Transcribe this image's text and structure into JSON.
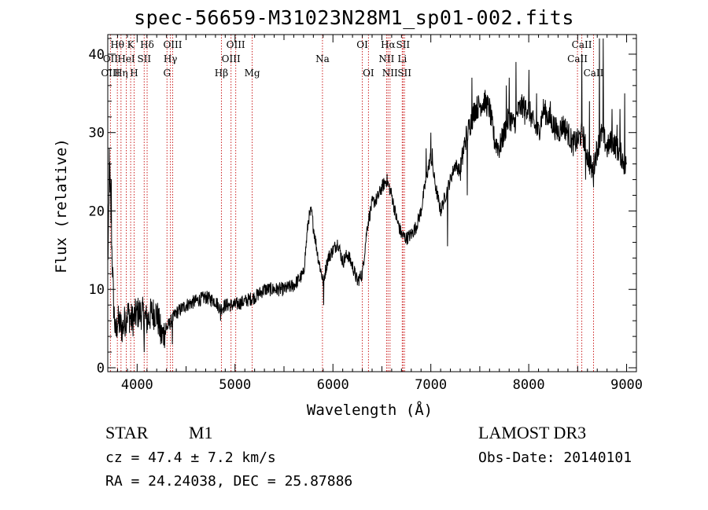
{
  "chart_data": {
    "type": "line",
    "title": "spec-56659-M31023N28M1_sp01-002.fits",
    "xlabel": "Wavelength (Å)",
    "ylabel": "Flux (relative)",
    "xlim": [
      3700,
      9100
    ],
    "ylim": [
      -0.5,
      42.5
    ],
    "xticks": [
      4000,
      5000,
      6000,
      7000,
      8000,
      9000
    ],
    "yticks": [
      0,
      10,
      20,
      30,
      40
    ],
    "spectrum_anchors": [
      [
        3700,
        13
      ],
      [
        3720,
        25
      ],
      [
        3740,
        16
      ],
      [
        3760,
        8
      ],
      [
        3780,
        4
      ],
      [
        3800,
        6
      ],
      [
        3850,
        5
      ],
      [
        3900,
        7
      ],
      [
        3950,
        6
      ],
      [
        4000,
        7
      ],
      [
        4050,
        7
      ],
      [
        4100,
        6
      ],
      [
        4150,
        7
      ],
      [
        4200,
        7
      ],
      [
        4250,
        4
      ],
      [
        4300,
        5
      ],
      [
        4350,
        6
      ],
      [
        4400,
        7
      ],
      [
        4500,
        8
      ],
      [
        4600,
        8.5
      ],
      [
        4700,
        9
      ],
      [
        4800,
        8.5
      ],
      [
        4850,
        7.5
      ],
      [
        4900,
        8
      ],
      [
        5000,
        8
      ],
      [
        5100,
        8.5
      ],
      [
        5200,
        9
      ],
      [
        5300,
        10
      ],
      [
        5400,
        10
      ],
      [
        5500,
        10
      ],
      [
        5600,
        10.5
      ],
      [
        5700,
        12
      ],
      [
        5750,
        19
      ],
      [
        5780,
        20
      ],
      [
        5800,
        18
      ],
      [
        5850,
        14
      ],
      [
        5900,
        11
      ],
      [
        5950,
        14
      ],
      [
        6000,
        15
      ],
      [
        6050,
        16
      ],
      [
        6100,
        13.5
      ],
      [
        6150,
        14.5
      ],
      [
        6200,
        13
      ],
      [
        6250,
        11
      ],
      [
        6300,
        12
      ],
      [
        6350,
        18
      ],
      [
        6400,
        21
      ],
      [
        6450,
        21.5
      ],
      [
        6500,
        23
      ],
      [
        6550,
        24
      ],
      [
        6600,
        22
      ],
      [
        6650,
        19
      ],
      [
        6700,
        17
      ],
      [
        6750,
        16.5
      ],
      [
        6800,
        17
      ],
      [
        6850,
        18
      ],
      [
        6900,
        20
      ],
      [
        6950,
        24
      ],
      [
        7000,
        27
      ],
      [
        7050,
        23
      ],
      [
        7100,
        20
      ],
      [
        7150,
        22
      ],
      [
        7200,
        24
      ],
      [
        7250,
        26
      ],
      [
        7300,
        25
      ],
      [
        7350,
        29
      ],
      [
        7400,
        31
      ],
      [
        7450,
        33
      ],
      [
        7500,
        33.5
      ],
      [
        7550,
        34
      ],
      [
        7600,
        33
      ],
      [
        7650,
        29
      ],
      [
        7700,
        28
      ],
      [
        7750,
        30
      ],
      [
        7800,
        32
      ],
      [
        7850,
        31
      ],
      [
        7900,
        33
      ],
      [
        7950,
        33.5
      ],
      [
        8000,
        33
      ],
      [
        8050,
        31
      ],
      [
        8100,
        30
      ],
      [
        8150,
        33
      ],
      [
        8200,
        32
      ],
      [
        8250,
        31
      ],
      [
        8300,
        30
      ],
      [
        8350,
        31
      ],
      [
        8400,
        30
      ],
      [
        8450,
        28.5
      ],
      [
        8500,
        29
      ],
      [
        8550,
        30
      ],
      [
        8600,
        27
      ],
      [
        8650,
        25
      ],
      [
        8700,
        28
      ],
      [
        8750,
        30
      ],
      [
        8800,
        28
      ],
      [
        8850,
        29
      ],
      [
        8900,
        28
      ],
      [
        8950,
        27
      ],
      [
        9000,
        25
      ]
    ],
    "spectrum_spikes": [
      [
        3715,
        28
      ],
      [
        3735,
        24
      ],
      [
        4070,
        2
      ],
      [
        4240,
        3
      ],
      [
        4270,
        3
      ],
      [
        4360,
        3
      ],
      [
        4850,
        6
      ],
      [
        5905,
        8
      ],
      [
        6950,
        28
      ],
      [
        7000,
        30
      ],
      [
        7015,
        28
      ],
      [
        7170,
        15.5
      ],
      [
        7370,
        22
      ],
      [
        7420,
        37
      ],
      [
        7770,
        36
      ],
      [
        7800,
        37
      ],
      [
        7870,
        39
      ],
      [
        7960,
        31
      ],
      [
        8000,
        38
      ],
      [
        8080,
        35
      ],
      [
        8220,
        34
      ],
      [
        8540,
        40
      ],
      [
        8580,
        24
      ],
      [
        8620,
        34
      ],
      [
        8660,
        23
      ],
      [
        8720,
        42
      ],
      [
        8760,
        42
      ],
      [
        8850,
        33
      ],
      [
        8900,
        31
      ],
      [
        8930,
        33
      ],
      [
        8980,
        35
      ],
      [
        8990,
        27
      ]
    ],
    "lines": [
      {
        "name": "Hθ",
        "wave": 3798,
        "row": 1
      },
      {
        "name": "OII",
        "wave": 3727,
        "row": 2
      },
      {
        "name": "OIII",
        "wave": 3727,
        "row": 3
      },
      {
        "name": "K",
        "wave": 3934,
        "row": 1
      },
      {
        "name": "HeI",
        "wave": 3889,
        "row": 2
      },
      {
        "name": "Hη",
        "wave": 3835,
        "row": 3
      },
      {
        "name": "Hδ",
        "wave": 4102,
        "row": 1
      },
      {
        "name": "SII",
        "wave": 4072,
        "row": 2
      },
      {
        "name": "H",
        "wave": 3969,
        "row": 3
      },
      {
        "name": "OIII",
        "wave": 4363,
        "row": 1
      },
      {
        "name": "Hγ",
        "wave": 4340,
        "row": 2
      },
      {
        "name": "G",
        "wave": 4305,
        "row": 3
      },
      {
        "name": "Hβ",
        "wave": 4861,
        "row": 3
      },
      {
        "name": "OIII",
        "wave": 5007,
        "row": 1
      },
      {
        "name": "OIII",
        "wave": 4959,
        "row": 2
      },
      {
        "name": "Mg",
        "wave": 5175,
        "row": 3
      },
      {
        "name": "Na",
        "wave": 5893,
        "row": 2
      },
      {
        "name": "OI",
        "wave": 6300,
        "row": 1
      },
      {
        "name": "OI",
        "wave": 6363,
        "row": 3
      },
      {
        "name": "Hα",
        "wave": 6563,
        "row": 1
      },
      {
        "name": "SII",
        "wave": 6716,
        "row": 1
      },
      {
        "name": "NII",
        "wave": 6548,
        "row": 2
      },
      {
        "name": "Li",
        "wave": 6708,
        "row": 2
      },
      {
        "name": "NII",
        "wave": 6583,
        "row": 3
      },
      {
        "name": "SII",
        "wave": 6731,
        "row": 3
      },
      {
        "name": "CaII",
        "wave": 8542,
        "row": 1
      },
      {
        "name": "CaII",
        "wave": 8498,
        "row": 2
      },
      {
        "name": "CaII",
        "wave": 8662,
        "row": 3
      }
    ],
    "line_color": "#cc2222"
  },
  "info": {
    "object_class": "STAR",
    "subclass": "M1",
    "redshift": "cz = 47.4 ± 7.2 km/s",
    "coords": "RA =  24.24038, DEC =  25.87886",
    "survey": "LAMOST DR3",
    "obs_date": "Obs-Date: 20140101"
  }
}
